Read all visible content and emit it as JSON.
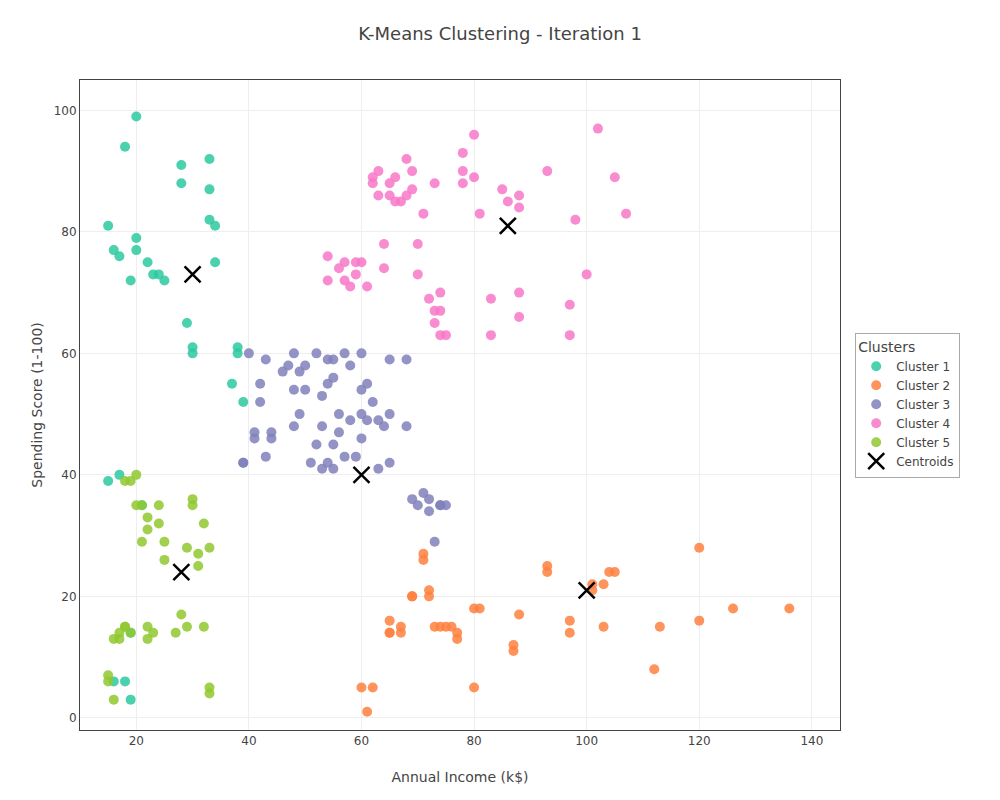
{
  "chart_data": {
    "type": "scatter",
    "title": "K-Means Clustering - Iteration 1",
    "xlabel": "Annual Income (k$)",
    "ylabel": "Spending Score (1-100)",
    "xlim": [
      10,
      145
    ],
    "ylim": [
      -2,
      105
    ],
    "xticks": [
      20,
      40,
      60,
      80,
      100,
      120,
      140
    ],
    "yticks": [
      0,
      20,
      40,
      60,
      80,
      100
    ],
    "grid": true,
    "legend": "right",
    "legend_title": "Clusters",
    "series": [
      {
        "name": "Cluster 1",
        "color": "#2dc9a0",
        "marker": "circle",
        "x": [
          15,
          16,
          17,
          18,
          19,
          20,
          20,
          20,
          22,
          23,
          24,
          25,
          28,
          28,
          29,
          30,
          30,
          33,
          33,
          33,
          34,
          34,
          37,
          38,
          38,
          39,
          17,
          21,
          19,
          16,
          18,
          19,
          15
        ],
        "values": [
          81,
          77,
          76,
          94,
          72,
          99,
          77,
          79,
          75,
          73,
          73,
          72,
          91,
          88,
          65,
          60,
          61,
          87,
          82,
          92,
          75,
          81,
          55,
          60,
          61,
          52,
          40,
          35,
          14,
          6,
          6,
          3,
          39
        ]
      },
      {
        "name": "Cluster 2",
        "color": "#ff8040",
        "marker": "circle",
        "x": [
          60,
          61,
          62,
          65,
          65,
          65,
          67,
          67,
          69,
          69,
          71,
          71,
          72,
          72,
          73,
          74,
          75,
          76,
          77,
          77,
          80,
          80,
          81,
          87,
          87,
          88,
          93,
          93,
          97,
          97,
          101,
          101,
          103,
          103,
          104,
          105,
          112,
          113,
          120,
          120,
          126,
          136
        ],
        "values": [
          5,
          1,
          5,
          14,
          14,
          16,
          15,
          14,
          20,
          20,
          26,
          27,
          20,
          21,
          15,
          15,
          15,
          15,
          13,
          14,
          5,
          18,
          18,
          11,
          12,
          17,
          25,
          24,
          16,
          14,
          21,
          22,
          22,
          15,
          24,
          24,
          8,
          15,
          16,
          28,
          18,
          18
        ]
      },
      {
        "name": "Cluster 3",
        "color": "#8080bb",
        "marker": "circle",
        "x": [
          39,
          40,
          41,
          41,
          42,
          42,
          43,
          43,
          44,
          44,
          46,
          47,
          48,
          48,
          48,
          49,
          49,
          50,
          50,
          51,
          52,
          52,
          53,
          53,
          53,
          54,
          54,
          54,
          55,
          55,
          55,
          55,
          56,
          56,
          57,
          57,
          58,
          58,
          59,
          60,
          60,
          60,
          60,
          61,
          61,
          62,
          63,
          63,
          64,
          65,
          65,
          65,
          68,
          68,
          69,
          70,
          71,
          72,
          72,
          73,
          74,
          74,
          75,
          39
        ],
        "values": [
          42,
          60,
          47,
          46,
          55,
          52,
          43,
          59,
          47,
          46,
          57,
          58,
          54,
          60,
          48,
          50,
          57,
          54,
          58,
          42,
          45,
          60,
          41,
          53,
          48,
          42,
          55,
          59,
          41,
          45,
          56,
          59,
          50,
          47,
          43,
          60,
          49,
          58,
          43,
          54,
          50,
          60,
          46,
          55,
          49,
          52,
          49,
          41,
          48,
          59,
          42,
          50,
          48,
          59,
          36,
          35,
          37,
          36,
          34,
          29,
          35,
          35,
          35,
          42
        ]
      },
      {
        "name": "Cluster 4",
        "color": "#f878c8",
        "marker": "circle",
        "x": [
          54,
          54,
          56,
          57,
          57,
          58,
          59,
          59,
          60,
          61,
          62,
          62,
          63,
          63,
          64,
          64,
          65,
          65,
          66,
          66,
          67,
          68,
          68,
          69,
          69,
          70,
          70,
          71,
          72,
          73,
          73,
          73,
          74,
          74,
          74,
          75,
          78,
          78,
          78,
          80,
          80,
          81,
          83,
          83,
          85,
          86,
          88,
          88,
          88,
          88,
          93,
          97,
          97,
          98,
          100,
          102,
          105,
          107
        ],
        "values": [
          76,
          72,
          74,
          72,
          75,
          71,
          75,
          73,
          75,
          71,
          88,
          89,
          86,
          90,
          74,
          78,
          86,
          88,
          85,
          89,
          85,
          86,
          92,
          87,
          90,
          73,
          78,
          83,
          69,
          67,
          65,
          88,
          67,
          70,
          63,
          63,
          88,
          90,
          93,
          96,
          89,
          83,
          63,
          69,
          87,
          85,
          86,
          84,
          66,
          70,
          90,
          63,
          68,
          82,
          73,
          97,
          89,
          83
        ]
      },
      {
        "name": "Cluster 5",
        "color": "#90c830",
        "marker": "circle",
        "x": [
          15,
          15,
          16,
          16,
          17,
          17,
          18,
          18,
          18,
          19,
          19,
          20,
          20,
          21,
          21,
          22,
          22,
          22,
          22,
          23,
          24,
          24,
          25,
          25,
          27,
          28,
          29,
          29,
          30,
          30,
          31,
          31,
          32,
          32,
          33,
          33,
          33
        ],
        "values": [
          6,
          7,
          3,
          13,
          14,
          13,
          15,
          15,
          39,
          39,
          14,
          40,
          35,
          29,
          35,
          13,
          15,
          31,
          33,
          14,
          32,
          35,
          29,
          26,
          14,
          17,
          15,
          28,
          35,
          36,
          27,
          25,
          15,
          32,
          28,
          4,
          5
        ]
      },
      {
        "name": "Centroids",
        "color": "black",
        "marker": "x",
        "x": [
          30,
          100,
          60,
          86,
          28
        ],
        "values": [
          73,
          21,
          40,
          81,
          24
        ]
      }
    ]
  }
}
